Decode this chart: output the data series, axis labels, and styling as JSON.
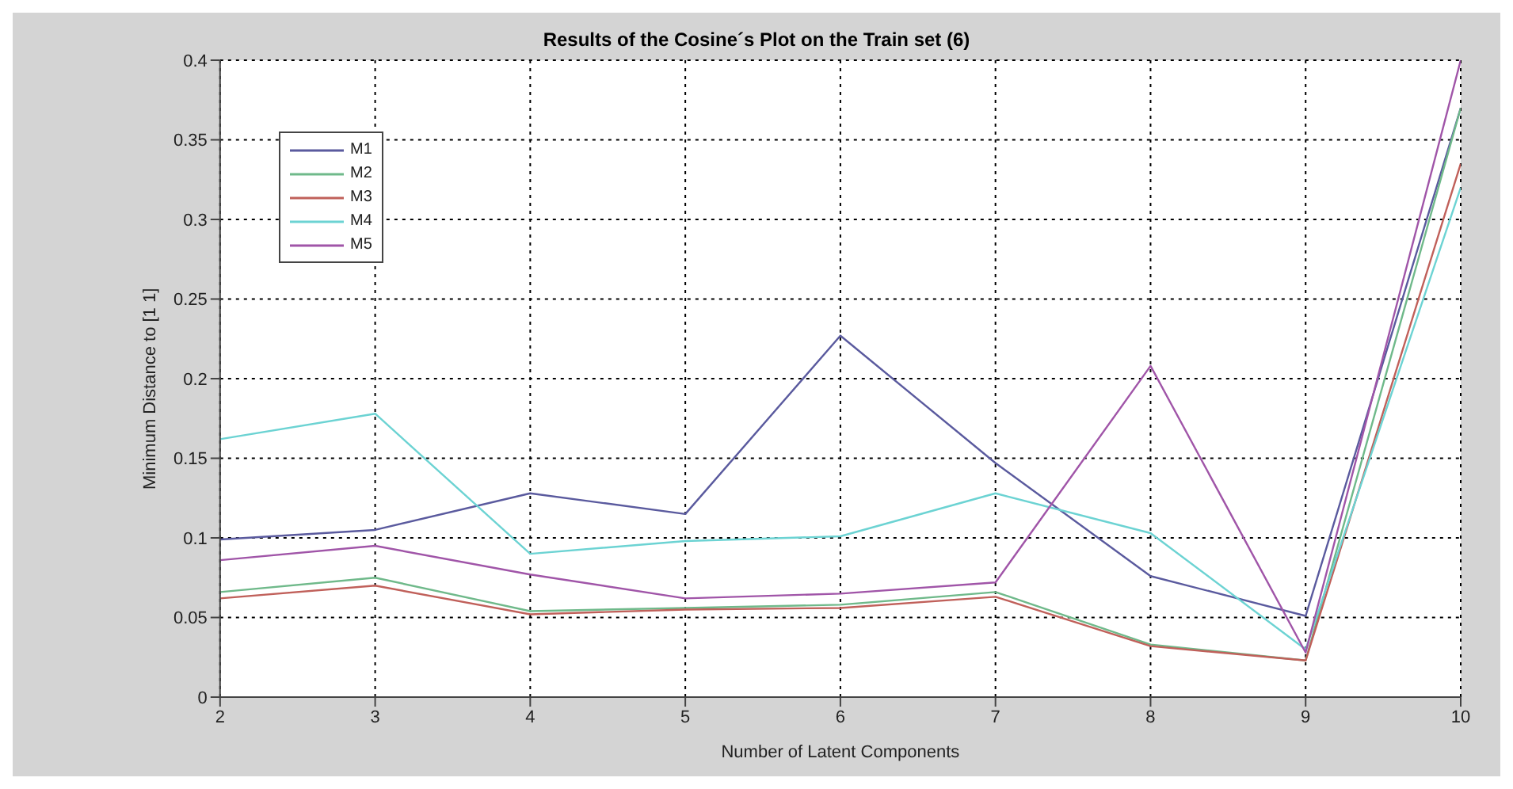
{
  "chart_data": {
    "type": "line",
    "title": "Results of the Cosine´s Plot on the Train set (6)",
    "xlabel": "Number of Latent Components",
    "ylabel": "Minimum Distance to [1 1]",
    "x": [
      2,
      3,
      4,
      5,
      6,
      7,
      8,
      9,
      10
    ],
    "xlim": [
      2,
      10
    ],
    "xticks": [
      2,
      3,
      4,
      5,
      6,
      7,
      8,
      9,
      10
    ],
    "ylim": [
      0,
      0.4
    ],
    "yticks": [
      0,
      0.05,
      0.1,
      0.15,
      0.2,
      0.25,
      0.3,
      0.35,
      0.4
    ],
    "grid": true,
    "legend": "top left",
    "line_style": "solid",
    "series": [
      {
        "name": "M1",
        "color": "#5a5a9e",
        "values": [
          0.099,
          0.105,
          0.128,
          0.115,
          0.227,
          0.147,
          0.076,
          0.051,
          0.37
        ]
      },
      {
        "name": "M2",
        "color": "#6fb98a",
        "values": [
          0.066,
          0.075,
          0.054,
          0.056,
          0.058,
          0.066,
          0.033,
          0.023,
          0.37
        ]
      },
      {
        "name": "M3",
        "color": "#c0605a",
        "values": [
          0.062,
          0.07,
          0.052,
          0.055,
          0.056,
          0.063,
          0.032,
          0.023,
          0.335
        ]
      },
      {
        "name": "M4",
        "color": "#6cd3d3",
        "values": [
          0.162,
          0.178,
          0.09,
          0.098,
          0.101,
          0.128,
          0.103,
          0.03,
          0.32
        ]
      },
      {
        "name": "M5",
        "color": "#a055a8",
        "values": [
          0.086,
          0.095,
          0.077,
          0.062,
          0.065,
          0.072,
          0.208,
          0.028,
          0.4
        ]
      }
    ]
  }
}
